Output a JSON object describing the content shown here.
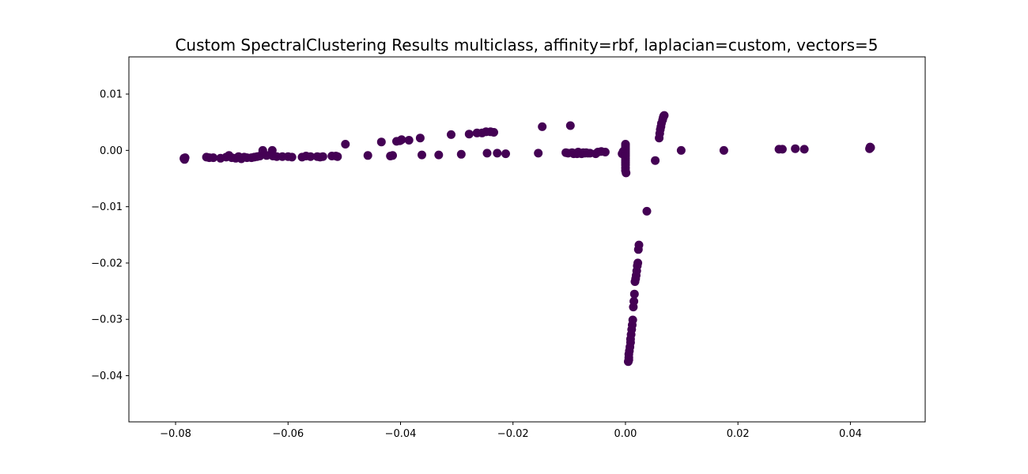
{
  "chart_data": {
    "type": "scatter",
    "title": "Custom SpectralClustering Results multiclass, affinity=rbf, laplacian=custom, vectors=5",
    "xlabel": "",
    "ylabel": "",
    "xlim": [
      -0.0883,
      0.0533
    ],
    "ylim": [
      -0.0482,
      0.0166
    ],
    "grid": false,
    "legend": "none",
    "point_color": "#440154",
    "x_ticks": [
      {
        "value": -0.08,
        "label": "−0.08"
      },
      {
        "value": -0.06,
        "label": "−0.06"
      },
      {
        "value": -0.04,
        "label": "−0.04"
      },
      {
        "value": -0.02,
        "label": "−0.02"
      },
      {
        "value": 0.0,
        "label": "0.00"
      },
      {
        "value": 0.02,
        "label": "0.02"
      },
      {
        "value": 0.04,
        "label": "0.04"
      }
    ],
    "y_ticks": [
      {
        "value": 0.01,
        "label": "0.01"
      },
      {
        "value": 0.0,
        "label": "0.00"
      },
      {
        "value": -0.01,
        "label": "−0.01"
      },
      {
        "value": -0.02,
        "label": "−0.02"
      },
      {
        "value": -0.03,
        "label": "−0.03"
      },
      {
        "value": -0.04,
        "label": "−0.04"
      }
    ],
    "points": [
      [
        -0.0785,
        -0.0015
      ],
      [
        -0.0783,
        -0.0013
      ],
      [
        -0.0785,
        -0.0014
      ],
      [
        -0.0784,
        -0.0016
      ],
      [
        -0.0745,
        -0.0012
      ],
      [
        -0.074,
        -0.0013
      ],
      [
        -0.0733,
        -0.0013
      ],
      [
        -0.072,
        -0.0014
      ],
      [
        -0.071,
        -0.0012
      ],
      [
        -0.0705,
        -0.0009
      ],
      [
        -0.07,
        -0.0013
      ],
      [
        -0.0693,
        -0.0014
      ],
      [
        -0.0688,
        -0.0011
      ],
      [
        -0.0683,
        -0.0015
      ],
      [
        -0.0678,
        -0.0012
      ],
      [
        -0.0673,
        -0.0013
      ],
      [
        -0.0665,
        -0.0013
      ],
      [
        -0.066,
        -0.0012
      ],
      [
        -0.0655,
        -0.0011
      ],
      [
        -0.065,
        -0.001
      ],
      [
        -0.0645,
        0.0
      ],
      [
        -0.0638,
        -0.0009
      ],
      [
        -0.0628,
        0.0
      ],
      [
        -0.0627,
        -0.001
      ],
      [
        -0.062,
        -0.0011
      ],
      [
        -0.061,
        -0.0011
      ],
      [
        -0.06,
        -0.0011
      ],
      [
        -0.0593,
        -0.0012
      ],
      [
        -0.0575,
        -0.0012
      ],
      [
        -0.0568,
        -0.001
      ],
      [
        -0.056,
        -0.0011
      ],
      [
        -0.0548,
        -0.0011
      ],
      [
        -0.0543,
        -0.0012
      ],
      [
        -0.0538,
        -0.0011
      ],
      [
        -0.0522,
        -0.001
      ],
      [
        -0.0515,
        -0.001
      ],
      [
        -0.0512,
        -0.0011
      ],
      [
        -0.0498,
        0.0011
      ],
      [
        -0.0458,
        -0.0009
      ],
      [
        -0.0434,
        0.0015
      ],
      [
        -0.0418,
        -0.001
      ],
      [
        -0.0414,
        -0.0009
      ],
      [
        -0.0407,
        0.0016
      ],
      [
        -0.0401,
        0.0017
      ],
      [
        -0.0398,
        0.0019
      ],
      [
        -0.0385,
        0.0018
      ],
      [
        -0.0365,
        0.0022
      ],
      [
        -0.0362,
        -0.0008
      ],
      [
        -0.0332,
        -0.0008
      ],
      [
        -0.031,
        0.0028
      ],
      [
        -0.0292,
        -0.0007
      ],
      [
        -0.0278,
        0.0029
      ],
      [
        -0.0264,
        0.0031
      ],
      [
        -0.0255,
        0.0031
      ],
      [
        -0.0248,
        0.0033
      ],
      [
        -0.0246,
        -0.0005
      ],
      [
        -0.024,
        0.0033
      ],
      [
        -0.0234,
        0.0032
      ],
      [
        -0.0228,
        -0.0005
      ],
      [
        -0.0213,
        -0.0006
      ],
      [
        -0.0155,
        -0.0005
      ],
      [
        -0.0148,
        0.0042
      ],
      [
        -0.0106,
        -0.0004
      ],
      [
        -0.0102,
        -0.0005
      ],
      [
        -0.0098,
        0.0044
      ],
      [
        -0.0095,
        -0.0004
      ],
      [
        -0.0092,
        -0.0006
      ],
      [
        -0.0088,
        -0.0005
      ],
      [
        -0.0086,
        -0.0006
      ],
      [
        -0.0084,
        -0.0003
      ],
      [
        -0.0081,
        -0.0005
      ],
      [
        -0.0078,
        -0.0006
      ],
      [
        -0.0075,
        -0.0004
      ],
      [
        -0.0072,
        -0.0005
      ],
      [
        -0.007,
        -0.0004
      ],
      [
        -0.0067,
        -0.0005
      ],
      [
        -0.0063,
        -0.0005
      ],
      [
        -0.0053,
        -0.0006
      ],
      [
        -0.0049,
        -0.0003
      ],
      [
        -0.0043,
        -0.0002
      ],
      [
        -0.0036,
        -0.0003
      ],
      [
        -0.0006,
        -0.0006
      ],
      [
        -0.0004,
        -0.0002
      ],
      [
        0.0,
        0.0011
      ],
      [
        0.0,
        0.0008
      ],
      [
        0.0,
        0.0005
      ],
      [
        0.0,
        0.0002
      ],
      [
        0.0,
        -0.0001
      ],
      [
        0.0,
        -0.0004
      ],
      [
        0.0,
        -0.0007
      ],
      [
        0.0,
        -0.001
      ],
      [
        0.0,
        -0.0014
      ],
      [
        0.0,
        -0.0018
      ],
      [
        0.0,
        -0.0022
      ],
      [
        0.0,
        -0.0026
      ],
      [
        0.0,
        -0.0031
      ],
      [
        0.0,
        -0.0036
      ],
      [
        0.0001,
        -0.004
      ],
      [
        0.0005,
        -0.0375
      ],
      [
        0.0006,
        -0.0372
      ],
      [
        0.0006,
        -0.0368
      ],
      [
        0.0006,
        -0.0362
      ],
      [
        0.0007,
        -0.0356
      ],
      [
        0.0008,
        -0.0349
      ],
      [
        0.0009,
        -0.0341
      ],
      [
        0.0009,
        -0.0335
      ],
      [
        0.001,
        -0.0327
      ],
      [
        0.0011,
        -0.0318
      ],
      [
        0.0012,
        -0.031
      ],
      [
        0.0013,
        -0.0301
      ],
      [
        0.0014,
        -0.0278
      ],
      [
        0.0015,
        -0.0268
      ],
      [
        0.0016,
        -0.0255
      ],
      [
        0.0017,
        -0.0233
      ],
      [
        0.0018,
        -0.0228
      ],
      [
        0.0019,
        -0.0222
      ],
      [
        0.002,
        -0.0214
      ],
      [
        0.0021,
        -0.0205
      ],
      [
        0.0022,
        -0.02
      ],
      [
        0.0023,
        -0.0176
      ],
      [
        0.0024,
        -0.0168
      ],
      [
        0.0038,
        -0.0108
      ],
      [
        0.0053,
        -0.0018
      ],
      [
        0.006,
        0.0022
      ],
      [
        0.0061,
        0.003
      ],
      [
        0.0062,
        0.0037
      ],
      [
        0.0063,
        0.0042
      ],
      [
        0.0064,
        0.0048
      ],
      [
        0.0066,
        0.0054
      ],
      [
        0.0067,
        0.0058
      ],
      [
        0.0068,
        0.0061
      ],
      [
        0.0069,
        0.0062
      ],
      [
        0.0099,
        0.0
      ],
      [
        0.0175,
        0.0
      ],
      [
        0.0273,
        0.0002
      ],
      [
        0.0279,
        0.0002
      ],
      [
        0.0302,
        0.0003
      ],
      [
        0.0318,
        0.0002
      ],
      [
        0.0434,
        0.0003
      ],
      [
        0.0435,
        0.0006
      ],
      [
        0.0436,
        0.0005
      ]
    ]
  }
}
